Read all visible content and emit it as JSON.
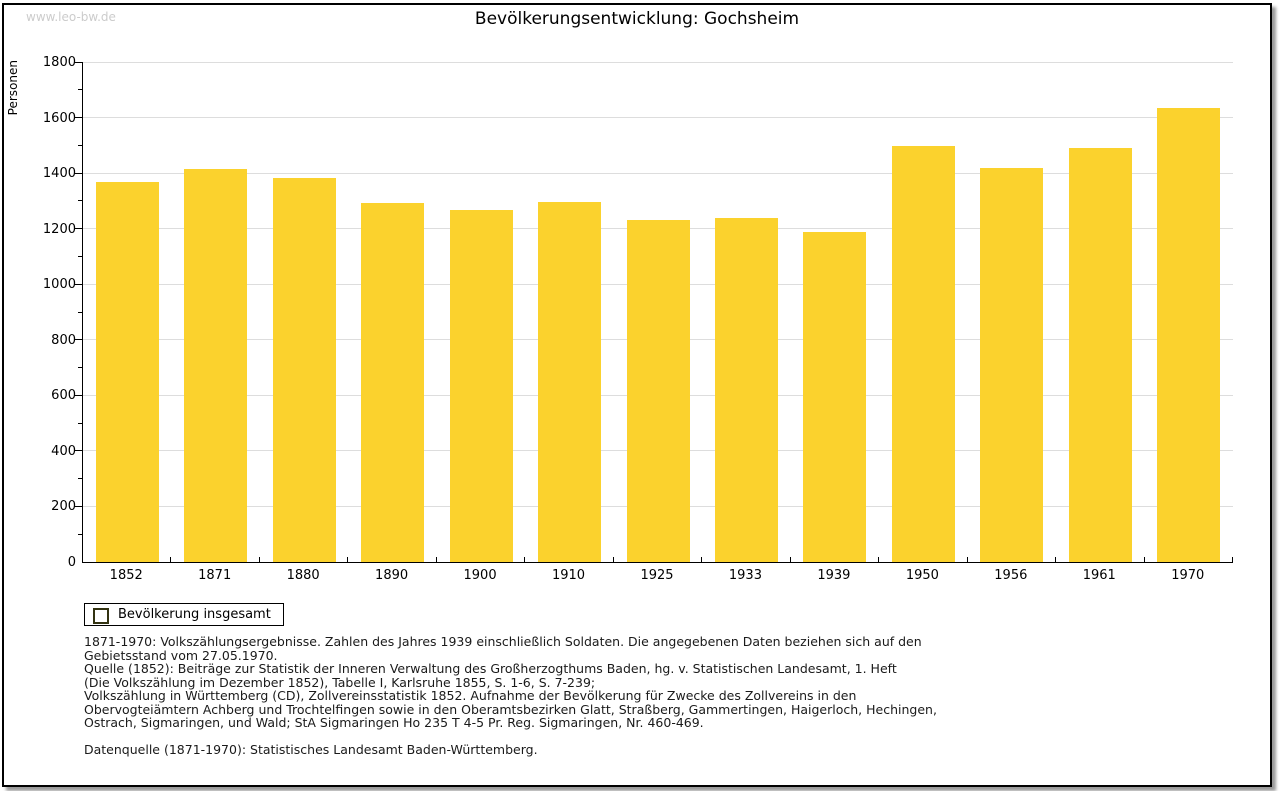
{
  "page": {
    "watermark": "www.leo-bw.de",
    "title": "Bevölkerungsentwicklung: Gochsheim"
  },
  "chart_data": {
    "type": "bar",
    "title": "Bevölkerungsentwicklung: Gochsheim",
    "xlabel": "",
    "ylabel": "Personen",
    "categories": [
      "1852",
      "1871",
      "1880",
      "1890",
      "1900",
      "1910",
      "1925",
      "1933",
      "1939",
      "1950",
      "1956",
      "1961",
      "1970"
    ],
    "values": [
      1367,
      1415,
      1381,
      1293,
      1268,
      1295,
      1230,
      1240,
      1189,
      1496,
      1420,
      1492,
      1633
    ],
    "ylim": [
      0,
      1800
    ],
    "ytick_major_interval": 200,
    "ytick_minor_interval": 100,
    "grid": true,
    "legend_position": "bottom-left",
    "bar_color": "#FBD22D",
    "gridline_color": "#dddddd"
  },
  "legend": {
    "label": "Bevölkerung insgesamt",
    "swatch_color": "#FBD22D"
  },
  "footnotes": {
    "lines": [
      "1871-1970: Volkszählungsergebnisse. Zahlen des Jahres 1939 einschließlich Soldaten. Die angegebenen Daten beziehen sich auf den",
      "Gebietsstand vom 27.05.1970.",
      "Quelle (1852): Beiträge zur Statistik der Inneren Verwaltung des Großherzogthums Baden, hg. v. Statistischen Landesamt, 1. Heft",
      "(Die Volkszählung im Dezember 1852), Tabelle I, Karlsruhe 1855, S. 1-6, S. 7-239;",
      "Volkszählung in Württemberg (CD), Zollvereinsstatistik 1852. Aufnahme der Bevölkerung für Zwecke des Zollvereins in den",
      "Obervogteiämtern Achberg und Trochtelfingen sowie in den Oberamtsbezirken Glatt, Straßberg, Gammertingen, Haigerloch, Hechingen,",
      "Ostrach, Sigmaringen, und Wald; StA Sigmaringen Ho 235 T 4-5 Pr. Reg. Sigmaringen, Nr. 460-469.",
      "",
      "Datenquelle (1871-1970): Statistisches Landesamt Baden-Württemberg."
    ]
  }
}
